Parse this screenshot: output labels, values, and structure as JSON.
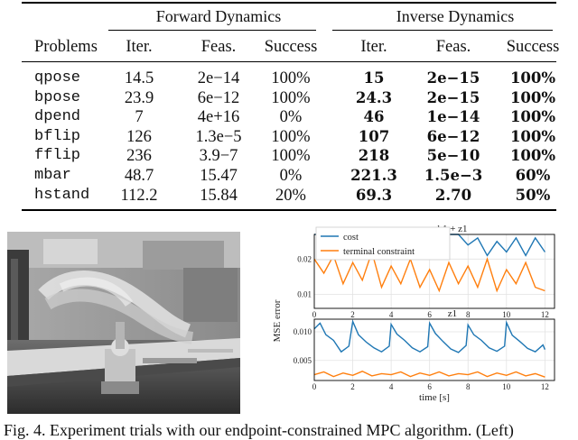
{
  "table": {
    "group_forward": "Forward Dynamics",
    "group_inverse": "Inverse Dynamics",
    "headers": [
      "Problems",
      "Iter.",
      "Feas.",
      "Success",
      "Iter.",
      "Feas.",
      "Success"
    ],
    "rows": [
      {
        "problem": "qpose",
        "f_iter": "14.5",
        "f_feas": "2e−14",
        "f_succ": "100%",
        "i_iter": "15",
        "i_feas": "2e−15",
        "i_succ": "100%"
      },
      {
        "problem": "bpose",
        "f_iter": "23.9",
        "f_feas": "6e−12",
        "f_succ": "100%",
        "i_iter": "24.3",
        "i_feas": "2e−15",
        "i_succ": "100%"
      },
      {
        "problem": "dpend",
        "f_iter": "7",
        "f_feas": "4e+16",
        "f_succ": "0%",
        "i_iter": "46",
        "i_feas": "1e−14",
        "i_succ": "100%"
      },
      {
        "problem": "bflip",
        "f_iter": "126",
        "f_feas": "1.3e−5",
        "f_succ": "100%",
        "i_iter": "107",
        "i_feas": "6e−12",
        "i_succ": "100%"
      },
      {
        "problem": "fflip",
        "f_iter": "236",
        "f_feas": "3.9−7",
        "f_succ": "100%",
        "i_iter": "218",
        "i_feas": "5e−10",
        "i_succ": "100%"
      },
      {
        "problem": "mbar",
        "f_iter": "48.7",
        "f_feas": "15.47",
        "f_succ": "0%",
        "i_iter": "221.3",
        "i_feas": "1.5e−3",
        "i_succ": "60%"
      },
      {
        "problem": "hstand",
        "f_iter": "112.2",
        "f_feas": "15.84",
        "f_succ": "20%",
        "i_iter": "69.3",
        "i_feas": "2.70",
        "i_succ": "50%"
      }
    ]
  },
  "chart_data": [
    {
      "type": "line",
      "title": "b1 + z1",
      "ylabel": "MSE error",
      "xlim": [
        0,
        12.5
      ],
      "ylim": [
        0.006,
        0.027
      ],
      "xticks": [
        0,
        2,
        4,
        6,
        8,
        10,
        12
      ],
      "yticks": [
        "0.01",
        "0.02"
      ],
      "ytick_values": [
        0.01,
        0.02
      ],
      "grid": true,
      "legend_position": "top-left",
      "series": [
        {
          "name": "cost",
          "color": "#1f77b4",
          "x": [
            0,
            0.5,
            1,
            1.5,
            2,
            2.5,
            3,
            3.5,
            4,
            4.5,
            5,
            5.5,
            6,
            6.5,
            7,
            7.5,
            8,
            8.5,
            9,
            9.5,
            10,
            10.5,
            11,
            11.5,
            12
          ],
          "y": [
            0.027,
            0.027,
            0.027,
            0.027,
            0.027,
            0.027,
            0.027,
            0.027,
            0.027,
            0.027,
            0.027,
            0.027,
            0.027,
            0.027,
            0.027,
            0.027,
            0.024,
            0.026,
            0.021,
            0.025,
            0.022,
            0.026,
            0.021,
            0.026,
            0.022
          ]
        },
        {
          "name": "terminal constraint",
          "color": "#ff7f0e",
          "x": [
            0,
            0.5,
            1,
            1.5,
            2,
            2.5,
            3,
            3.5,
            4,
            4.5,
            5,
            5.5,
            6,
            6.5,
            7,
            7.5,
            8,
            8.5,
            9,
            9.5,
            10,
            10.5,
            11,
            11.5,
            12
          ],
          "y": [
            0.02,
            0.016,
            0.021,
            0.013,
            0.019,
            0.014,
            0.022,
            0.012,
            0.018,
            0.013,
            0.02,
            0.012,
            0.017,
            0.011,
            0.019,
            0.013,
            0.018,
            0.012,
            0.02,
            0.011,
            0.017,
            0.013,
            0.019,
            0.012,
            0.011
          ]
        }
      ]
    },
    {
      "type": "line",
      "title": "z1",
      "xlabel": "time [s]",
      "xlim": [
        0,
        12.5
      ],
      "ylim": [
        0.0015,
        0.0122
      ],
      "xticks": [
        0,
        2,
        4,
        6,
        8,
        10,
        12
      ],
      "yticks": [
        "0.005",
        "0.010"
      ],
      "ytick_values": [
        0.005,
        0.01
      ],
      "grid": true,
      "series": [
        {
          "name": "cost",
          "color": "#1f77b4",
          "x": [
            0,
            0.3,
            0.6,
            1,
            1.4,
            1.8,
            2,
            2.3,
            2.7,
            3.1,
            3.5,
            3.9,
            4,
            4.3,
            4.7,
            5.1,
            5.5,
            5.9,
            6,
            6.3,
            6.7,
            7.1,
            7.5,
            7.9,
            8,
            8.3,
            8.7,
            9.1,
            9.5,
            9.9,
            10,
            10.3,
            10.7,
            11.1,
            11.5,
            11.9,
            12
          ],
          "y": [
            0.0105,
            0.0115,
            0.0095,
            0.0085,
            0.0065,
            0.0075,
            0.0118,
            0.0095,
            0.0082,
            0.0072,
            0.0065,
            0.0075,
            0.0113,
            0.0096,
            0.0085,
            0.0072,
            0.0065,
            0.0074,
            0.0115,
            0.0097,
            0.0083,
            0.007,
            0.0064,
            0.0076,
            0.0112,
            0.0095,
            0.0085,
            0.0072,
            0.0066,
            0.0075,
            0.0116,
            0.0094,
            0.0083,
            0.0071,
            0.0065,
            0.0077,
            0.0069
          ]
        },
        {
          "name": "terminal constraint",
          "color": "#ff7f0e",
          "x": [
            0,
            0.5,
            1,
            1.5,
            2,
            2.5,
            3,
            3.5,
            4,
            4.5,
            5,
            5.5,
            6,
            6.5,
            7,
            7.5,
            8,
            8.5,
            9,
            9.5,
            10,
            10.5,
            11,
            11.5,
            12
          ],
          "y": [
            0.0025,
            0.003,
            0.0022,
            0.0028,
            0.0024,
            0.0031,
            0.0023,
            0.0027,
            0.0025,
            0.003,
            0.0022,
            0.0028,
            0.0024,
            0.003,
            0.0023,
            0.0027,
            0.0025,
            0.003,
            0.0022,
            0.0028,
            0.0024,
            0.003,
            0.0023,
            0.0027,
            0.0021
          ]
        }
      ]
    }
  ],
  "caption": "Fig. 4.  Experiment trials with our endpoint-constrained MPC algorithm. (Left)"
}
